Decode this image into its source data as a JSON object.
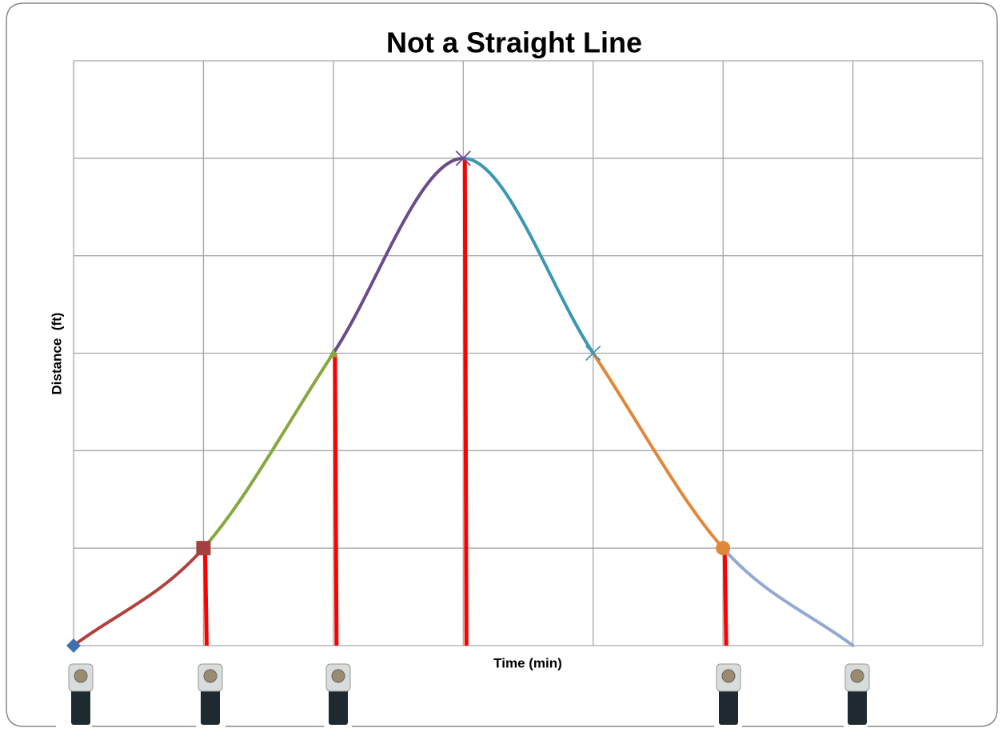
{
  "chart_data": {
    "type": "line",
    "title": "Not a Straight Line",
    "x_label": "Time (min)",
    "y_label": "Distance  (ft)",
    "x": [
      0,
      1,
      2,
      3,
      4,
      5,
      6
    ],
    "values": [
      0,
      1,
      3,
      5,
      3,
      1,
      0
    ],
    "segment_colors": [
      "#b0413e",
      "#86a83f",
      "#6b4c8a",
      "#3a98b0",
      "#e0873a",
      "#93a9d1"
    ],
    "markers": [
      "diamond",
      "square",
      "triangle",
      "x",
      "x",
      "circle",
      "none"
    ],
    "marker_colors": [
      "#3f6fad",
      "#a4403e",
      "#86a83f",
      "#6b4c8a",
      "#3a98b0",
      "#e0873a",
      "#93a9d1"
    ],
    "smooth": true,
    "drop_lines": [
      false,
      true,
      true,
      true,
      false,
      true,
      false
    ],
    "drop_line_color": "#ff0000",
    "xlim": [
      0,
      7
    ],
    "xticks": [
      0,
      1,
      2,
      3,
      4,
      5,
      6,
      7
    ],
    "ylim": [
      0,
      6
    ],
    "yticks": [
      0,
      1,
      2,
      3,
      4,
      5,
      6
    ],
    "grid": true,
    "show_tick_labels": false
  }
}
